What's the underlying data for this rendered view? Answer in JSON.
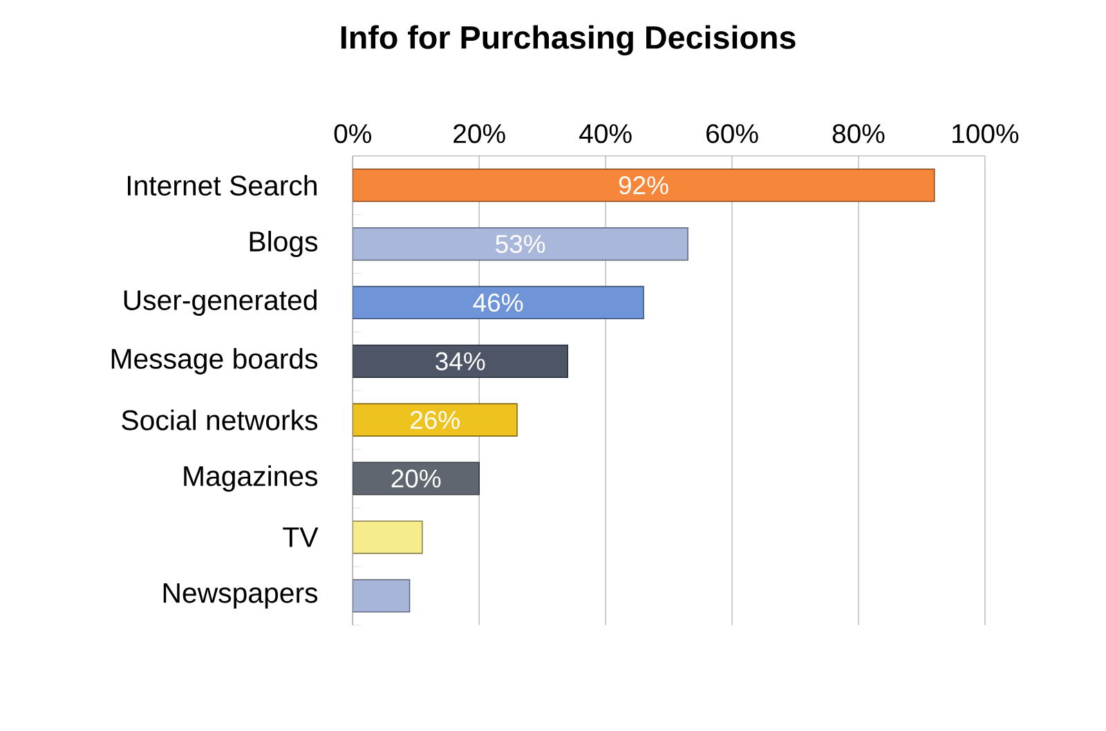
{
  "chart_data": {
    "type": "bar",
    "orientation": "horizontal",
    "title": "Info for Purchasing Decisions",
    "categories": [
      "Internet Search",
      "Blogs",
      "User-generated",
      "Message boards",
      "Social networks",
      "Magazines",
      "TV",
      "Newspapers"
    ],
    "values": [
      92,
      53,
      46,
      34,
      26,
      20,
      11,
      9
    ],
    "value_labels": [
      "92%",
      "53%",
      "46%",
      "34%",
      "26%",
      "20%",
      null,
      null
    ],
    "colors": [
      "#f5863a",
      "#a9b8da",
      "#6f94d8",
      "#4d5566",
      "#eec21f",
      "#60666f",
      "#f7ec8c",
      "#a7b6d8"
    ],
    "xlim": [
      0,
      100
    ],
    "xticks": [
      {
        "value": 0,
        "label": "0%"
      },
      {
        "value": 20,
        "label": "20%"
      },
      {
        "value": 40,
        "label": "40%"
      },
      {
        "value": 60,
        "label": "60%"
      },
      {
        "value": 80,
        "label": "80%"
      },
      {
        "value": 100,
        "label": "100%"
      }
    ],
    "grid": "x"
  }
}
